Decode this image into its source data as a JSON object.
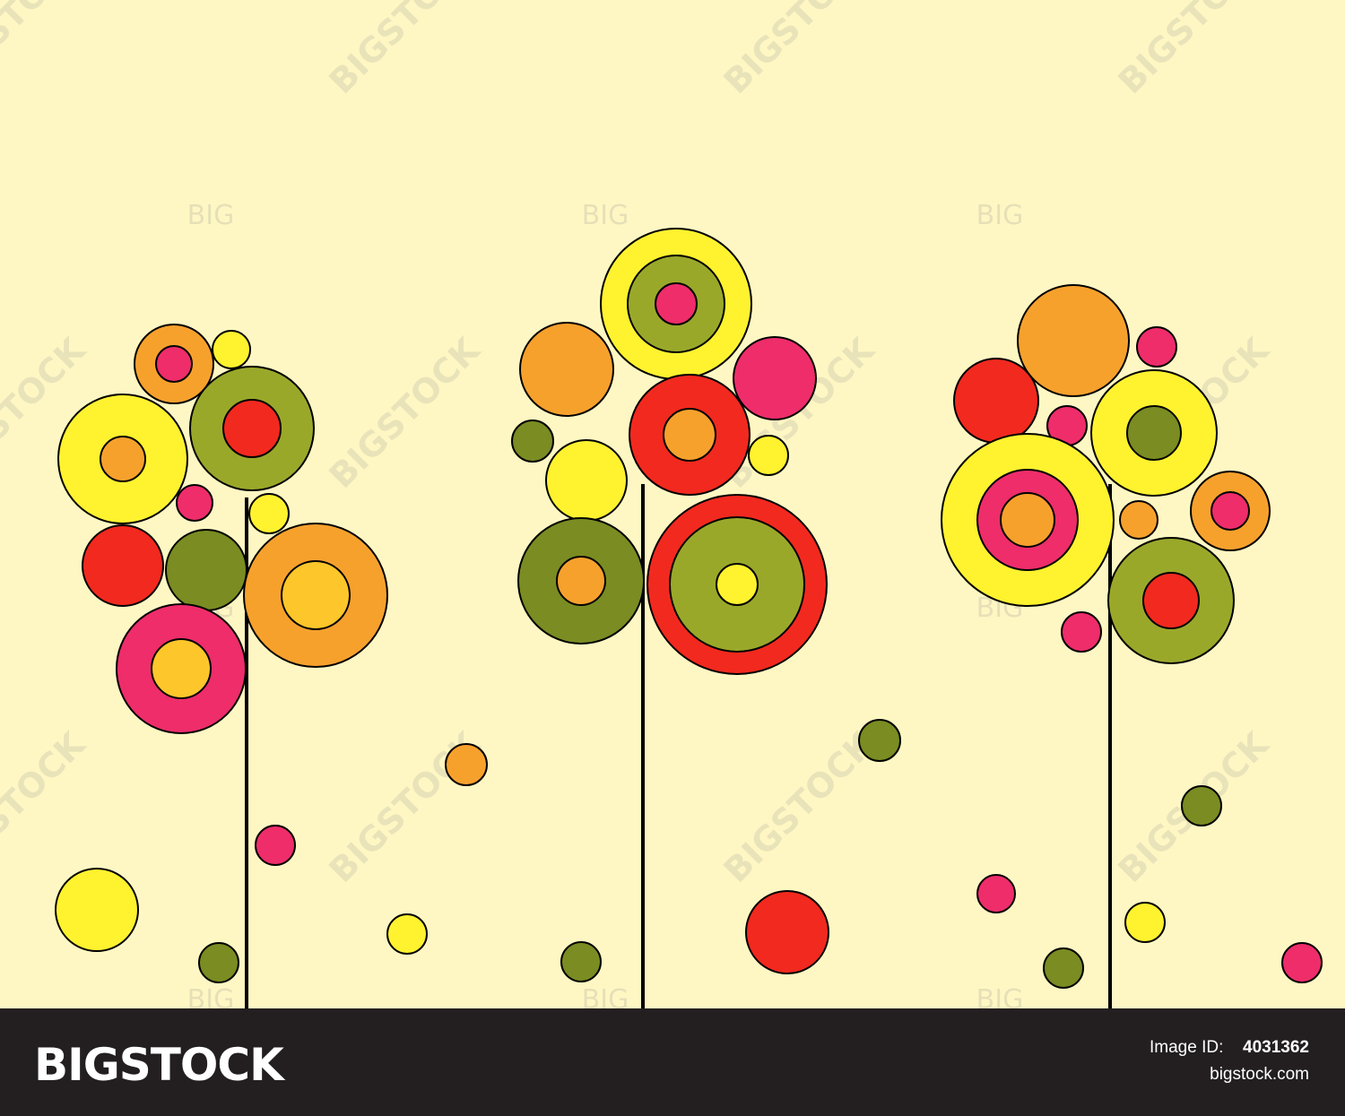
{
  "watermarks": {
    "logo": "BIGSTOCK",
    "short": "BIG"
  },
  "footer": {
    "brand": "BIGSTOCK",
    "id_label": "Image ID:",
    "id_value": "4031362",
    "site": "bigstock.com"
  }
}
